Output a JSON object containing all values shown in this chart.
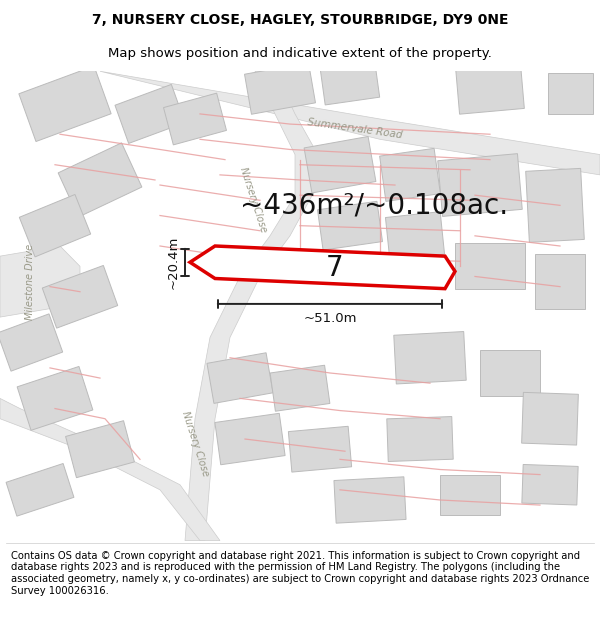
{
  "title_line1": "7, NURSERY CLOSE, HAGLEY, STOURBRIDGE, DY9 0NE",
  "title_line2": "Map shows position and indicative extent of the property.",
  "footer_text": "Contains OS data © Crown copyright and database right 2021. This information is subject to Crown copyright and database rights 2023 and is reproduced with the permission of HM Land Registry. The polygons (including the associated geometry, namely x, y co-ordinates) are subject to Crown copyright and database rights 2023 Ordnance Survey 100026316.",
  "area_text": "~436m²/~0.108ac.",
  "plot_number": "7",
  "dim_width": "~51.0m",
  "dim_height": "~20.4m",
  "map_bg": "#ffffff",
  "road_fill": "#e8e8e8",
  "building_fill": "#d8d8d8",
  "building_edge": "#bbbbbb",
  "plot_edge_color": "#dd0000",
  "road_pink": "#f0c0c0",
  "road_outline": "#ccaaaa",
  "title_fontsize": 10,
  "footer_fontsize": 7.2,
  "area_fontsize": 20,
  "plot_label_fontsize": 20,
  "road_label_color": "#999988",
  "road_label_size": 7.5
}
